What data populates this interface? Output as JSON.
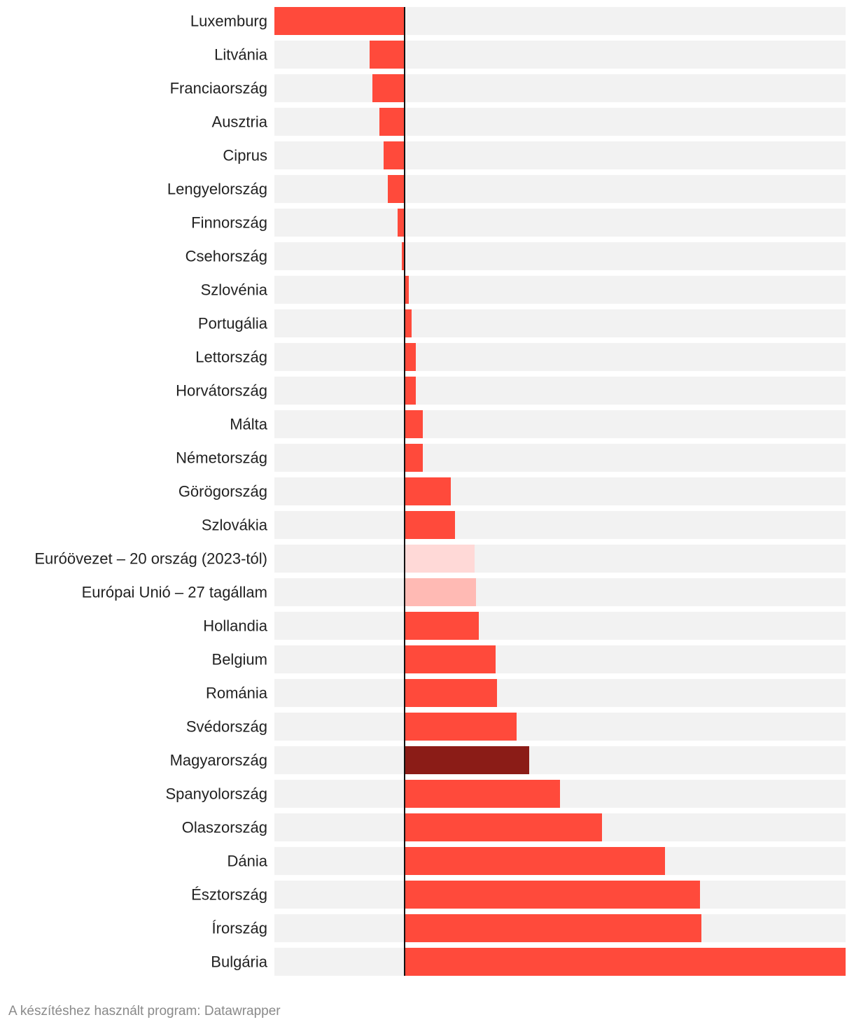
{
  "chart_data": {
    "type": "bar",
    "orientation": "horizontal",
    "categories": [
      "Luxemburg",
      "Litvánia",
      "Franciaország",
      "Ausztria",
      "Ciprus",
      "Lengyelország",
      "Finnország",
      "Csehország",
      "Szlovénia",
      "Portugália",
      "Lettország",
      "Horvátország",
      "Málta",
      "Németország",
      "Görögország",
      "Szlovákia",
      "Euróövezet – 20 ország (2023-tól)",
      "Európai Unió – 27 tagállam",
      "Hollandia",
      "Belgium",
      "Románia",
      "Svédország",
      "Magyarország",
      "Spanyolország",
      "Olaszország",
      "Dánia",
      "Észtország",
      "Írország",
      "Bulgária"
    ],
    "values": [
      -9.3,
      -2.5,
      -2.3,
      -1.8,
      -1.5,
      -1.2,
      -0.5,
      -0.2,
      0.3,
      0.5,
      0.8,
      0.8,
      1.3,
      1.3,
      3.3,
      3.6,
      5.0,
      5.1,
      5.3,
      6.5,
      6.6,
      8.0,
      8.9,
      11.1,
      14.1,
      18.6,
      21.1,
      21.2,
      31.5
    ],
    "highlight": {
      "Euróövezet – 20 ország (2023-tól)": "#ffd9d7",
      "Európai Unió – 27 tagállam": "#ffbab4",
      "Magyarország": "#8b1c17"
    },
    "colors": {
      "bar": "#ff4a3b",
      "track": "#f2f2f2",
      "axis": "#111111"
    },
    "xlim": [
      -9.3,
      31.5
    ],
    "title": "",
    "xlabel": "",
    "ylabel": "",
    "grid": false,
    "legend": "none"
  },
  "footer": {
    "credit": "A készítéshez használt program: Datawrapper"
  }
}
